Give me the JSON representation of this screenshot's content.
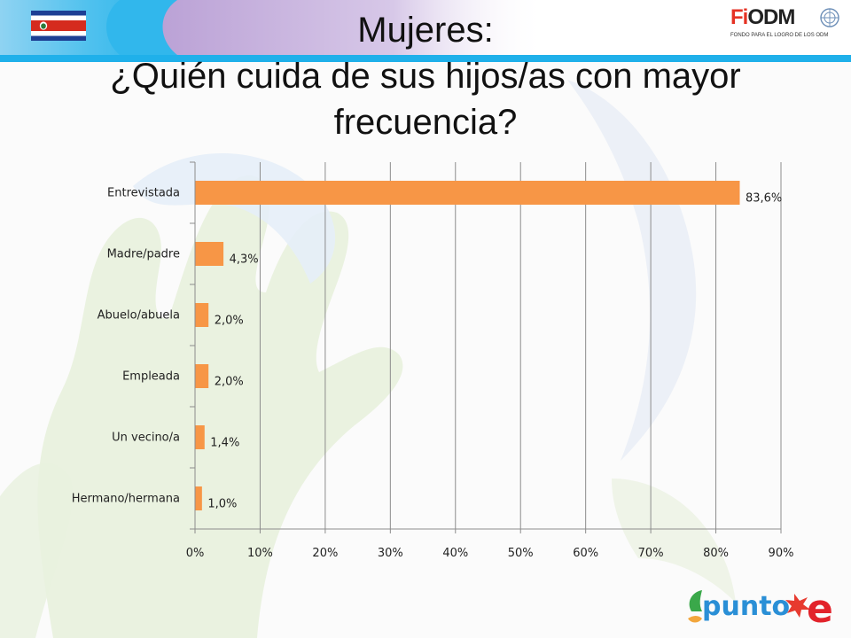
{
  "title": {
    "line1": "Mujeres:",
    "line2": "¿Quién cuida de sus hijos/as con mayor",
    "line3": "frecuencia?"
  },
  "logos": {
    "fodm": {
      "letter_f": "F",
      "letter_dot": "i",
      "letters": "ODM",
      "subtitle": "FONDO PARA EL LOGRO DE LOS ODM"
    },
    "punto_e": {
      "word": "punto",
      "letter": "e"
    }
  },
  "icons": {
    "flag": "costa-rica-flag-icon",
    "un": "un-emblem-icon"
  },
  "colors": {
    "bar": "#f79646",
    "header_accent": "#1fb0ea",
    "header_shape": "#c9b3dd"
  },
  "chart_data": {
    "type": "bar",
    "orientation": "horizontal",
    "categories": [
      "Entrevistada",
      "Madre/padre",
      "Abuelo/abuela",
      "Empleada",
      "Un vecino/a",
      "Hermano/hermana"
    ],
    "values": [
      83.6,
      4.3,
      2.0,
      2.0,
      1.4,
      1.0
    ],
    "value_labels": [
      "83,6%",
      "4,3%",
      "2,0%",
      "2,0%",
      "1,4%",
      "1,0%"
    ],
    "xlim": [
      0,
      90
    ],
    "x_ticks": [
      "0%",
      "10%",
      "20%",
      "30%",
      "40%",
      "50%",
      "60%",
      "70%",
      "80%",
      "90%"
    ],
    "grid": "vertical",
    "legend": "none"
  }
}
